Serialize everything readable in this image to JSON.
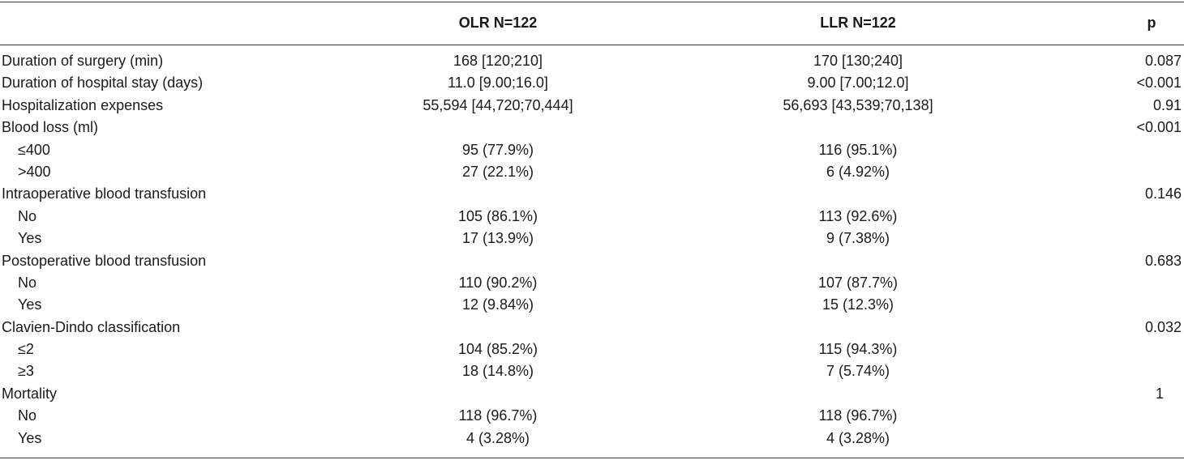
{
  "table": {
    "headers": {
      "label": "",
      "olr": "OLR N=122",
      "llr": "LLR N=122",
      "p": "p"
    },
    "rows": [
      {
        "label": "Duration of surgery (min)",
        "olr": "168 [120;210]",
        "llr": "170 [130;240]",
        "p": "0.087",
        "sub": false
      },
      {
        "label": "Duration of hospital stay (days)",
        "olr": "11.0 [9.00;16.0]",
        "llr": "9.00 [7.00;12.0]",
        "p": "<0.001",
        "sub": false
      },
      {
        "label": "Hospitalization expenses",
        "olr": "55,594 [44,720;70,444]",
        "llr": "56,693 [43,539;70,138]",
        "p": "0.91",
        "sub": false
      },
      {
        "label": "Blood loss (ml)",
        "olr": "",
        "llr": "",
        "p": "<0.001",
        "sub": false
      },
      {
        "label": "≤400",
        "olr": "95 (77.9%)",
        "llr": "116 (95.1%)",
        "p": "",
        "sub": true
      },
      {
        "label": ">400",
        "olr": "27 (22.1%)",
        "llr": "6 (4.92%)",
        "p": "",
        "sub": true
      },
      {
        "label": "Intraoperative blood transfusion",
        "olr": "",
        "llr": "",
        "p": "0.146",
        "sub": false
      },
      {
        "label": "No",
        "olr": "105 (86.1%)",
        "llr": "113 (92.6%)",
        "p": "",
        "sub": true
      },
      {
        "label": "Yes",
        "olr": "17 (13.9%)",
        "llr": "9 (7.38%)",
        "p": "",
        "sub": true
      },
      {
        "label": "Postoperative blood transfusion",
        "olr": "",
        "llr": "",
        "p": "0.683",
        "sub": false
      },
      {
        "label": "No",
        "olr": "110 (90.2%)",
        "llr": "107 (87.7%)",
        "p": "",
        "sub": true
      },
      {
        "label": "Yes",
        "olr": "12 (9.84%)",
        "llr": "15 (12.3%)",
        "p": "",
        "sub": true
      },
      {
        "label": "Clavien-Dindo classification",
        "olr": "",
        "llr": "",
        "p": "0.032",
        "sub": false
      },
      {
        "label": "≤2",
        "olr": "104 (85.2%)",
        "llr": "115 (94.3%)",
        "p": "",
        "sub": true
      },
      {
        "label": "≥3",
        "olr": "18 (14.8%)",
        "llr": "7 (5.74%)",
        "p": "",
        "sub": true
      },
      {
        "label": "Mortality",
        "olr": "",
        "llr": "",
        "p": "1",
        "sub": false
      },
      {
        "label": "No",
        "olr": "118 (96.7%)",
        "llr": "118 (96.7%)",
        "p": "",
        "sub": true
      },
      {
        "label": "Yes",
        "olr": "4 (3.28%)",
        "llr": "4 (3.28%)",
        "p": "",
        "sub": true
      }
    ]
  }
}
